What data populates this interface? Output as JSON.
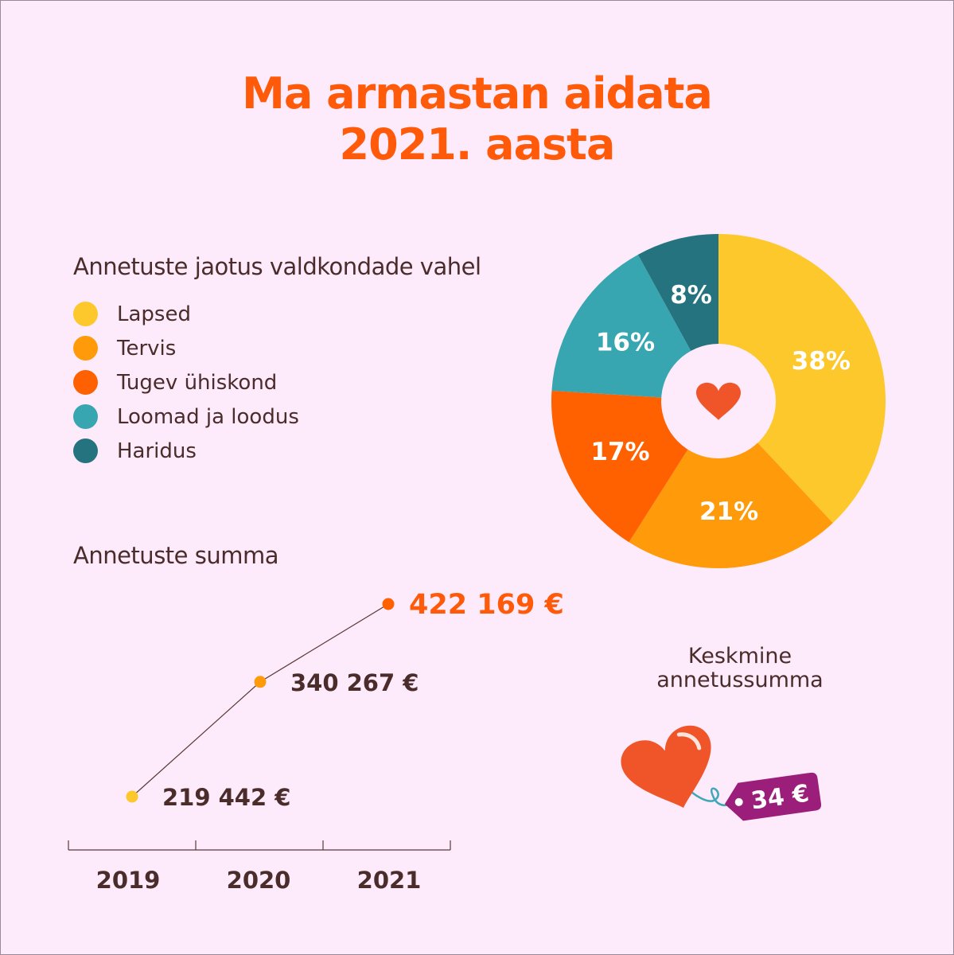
{
  "title": {
    "line1": "Ma armastan aidata",
    "line2": "2021. aasta"
  },
  "colors": {
    "background": "#fdeafb",
    "accent": "#ff5a0a",
    "text": "#4a2c2a",
    "tag": "#9b1f7a"
  },
  "chart_data": [
    {
      "type": "pie",
      "title": "Annetuste jaotus valdkondade vahel",
      "center_icon": "heart-icon",
      "slices": [
        {
          "name": "Lapsed",
          "value": 38,
          "label": "38%",
          "color": "#fdc82c"
        },
        {
          "name": "Tervis",
          "value": 21,
          "label": "21%",
          "color": "#ff9a0a"
        },
        {
          "name": "Tugev ühiskond",
          "value": 17,
          "label": "17%",
          "color": "#ff6000"
        },
        {
          "name": "Loomad ja loodus",
          "value": 16,
          "label": "16%",
          "color": "#37a6b0"
        },
        {
          "name": "Haridus",
          "value": 8,
          "label": "8%",
          "color": "#25737f"
        }
      ]
    },
    {
      "type": "line",
      "title": "Annetuste summa",
      "categories": [
        "2019",
        "2020",
        "2021"
      ],
      "values": [
        219442,
        340267,
        422169
      ],
      "labels": [
        "219 442 €",
        "340 267 €",
        "422 169 €"
      ],
      "point_colors": [
        "#fdc82c",
        "#ff9a0a",
        "#ff6000"
      ],
      "ylim": [
        219442,
        422169
      ]
    }
  ],
  "average": {
    "title_line1": "Keskmine",
    "title_line2": "annetussumma",
    "value": "34 €"
  }
}
